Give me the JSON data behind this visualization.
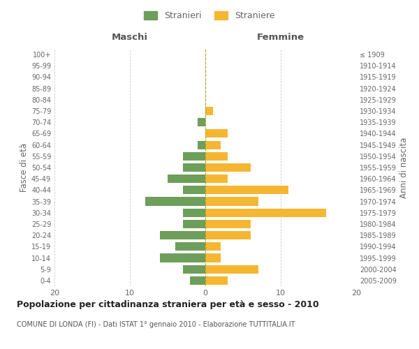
{
  "age_groups": [
    "100+",
    "95-99",
    "90-94",
    "85-89",
    "80-84",
    "75-79",
    "70-74",
    "65-69",
    "60-64",
    "55-59",
    "50-54",
    "45-49",
    "40-44",
    "35-39",
    "30-34",
    "25-29",
    "20-24",
    "15-19",
    "10-14",
    "5-9",
    "0-4"
  ],
  "birth_years": [
    "≤ 1909",
    "1910-1914",
    "1915-1919",
    "1920-1924",
    "1925-1929",
    "1930-1934",
    "1935-1939",
    "1940-1944",
    "1945-1949",
    "1950-1954",
    "1955-1959",
    "1960-1964",
    "1965-1969",
    "1970-1974",
    "1975-1979",
    "1980-1984",
    "1985-1989",
    "1990-1994",
    "1995-1999",
    "2000-2004",
    "2005-2009"
  ],
  "males": [
    0,
    0,
    0,
    0,
    0,
    0,
    1,
    0,
    1,
    3,
    3,
    5,
    3,
    8,
    3,
    3,
    6,
    4,
    6,
    3,
    2
  ],
  "females": [
    0,
    0,
    0,
    0,
    0,
    1,
    0,
    3,
    2,
    3,
    6,
    3,
    11,
    7,
    16,
    6,
    6,
    2,
    2,
    7,
    3
  ],
  "male_color": "#6d9e5a",
  "female_color": "#f5b731",
  "background_color": "#ffffff",
  "grid_color": "#cccccc",
  "title": "Popolazione per cittadinanza straniera per età e sesso - 2010",
  "subtitle": "COMUNE DI LONDA (FI) - Dati ISTAT 1° gennaio 2010 - Elaborazione TUTTITALIA.IT",
  "left_label": "Maschi",
  "right_label": "Femmine",
  "y_label_left": "Fasce di età",
  "y_label_right": "Anni di nascita",
  "legend_male": "Stranieri",
  "legend_female": "Straniere",
  "xlim": 20,
  "text_color": "#666666",
  "header_color": "#555555"
}
